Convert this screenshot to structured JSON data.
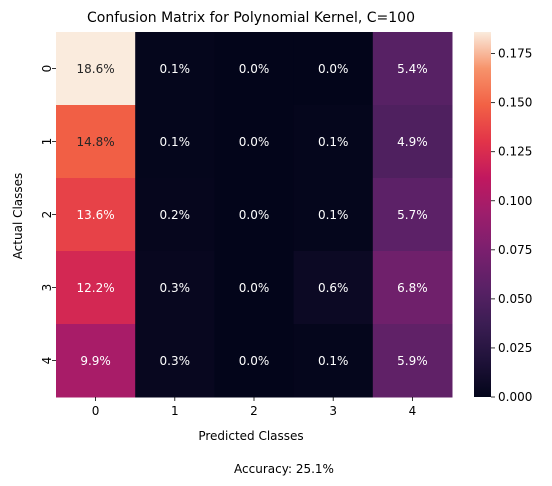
{
  "chart_data": {
    "type": "heatmap",
    "title": "Confusion Matrix for Polynomial Kernel, C=100",
    "xlabel": "Predicted Classes",
    "ylabel": "Actual Classes",
    "x_categories": [
      "0",
      "1",
      "2",
      "3",
      "4"
    ],
    "y_categories": [
      "0",
      "1",
      "2",
      "3",
      "4"
    ],
    "values": [
      [
        0.186,
        0.001,
        0.0,
        0.0,
        0.054
      ],
      [
        0.148,
        0.001,
        0.0,
        0.001,
        0.049
      ],
      [
        0.136,
        0.002,
        0.0,
        0.001,
        0.057
      ],
      [
        0.122,
        0.003,
        0.0,
        0.006,
        0.068
      ],
      [
        0.099,
        0.003,
        0.0,
        0.001,
        0.059
      ]
    ],
    "annotations": [
      [
        "18.6%",
        "0.1%",
        "0.0%",
        "0.0%",
        "5.4%"
      ],
      [
        "14.8%",
        "0.1%",
        "0.0%",
        "0.1%",
        "4.9%"
      ],
      [
        "13.6%",
        "0.2%",
        "0.0%",
        "0.1%",
        "5.7%"
      ],
      [
        "12.2%",
        "0.3%",
        "0.0%",
        "0.6%",
        "6.8%"
      ],
      [
        "9.9%",
        "0.3%",
        "0.0%",
        "0.1%",
        "5.9%"
      ]
    ],
    "colorbar": {
      "range": [
        0.0,
        0.186
      ],
      "ticks": [
        0.0,
        0.025,
        0.05,
        0.075,
        0.1,
        0.125,
        0.15,
        0.175
      ],
      "tick_labels": [
        "0.000",
        "0.025",
        "0.050",
        "0.075",
        "0.100",
        "0.125",
        "0.150",
        "0.175"
      ]
    },
    "colormap": "rocket",
    "footer": "Accuracy: 25.1%"
  }
}
